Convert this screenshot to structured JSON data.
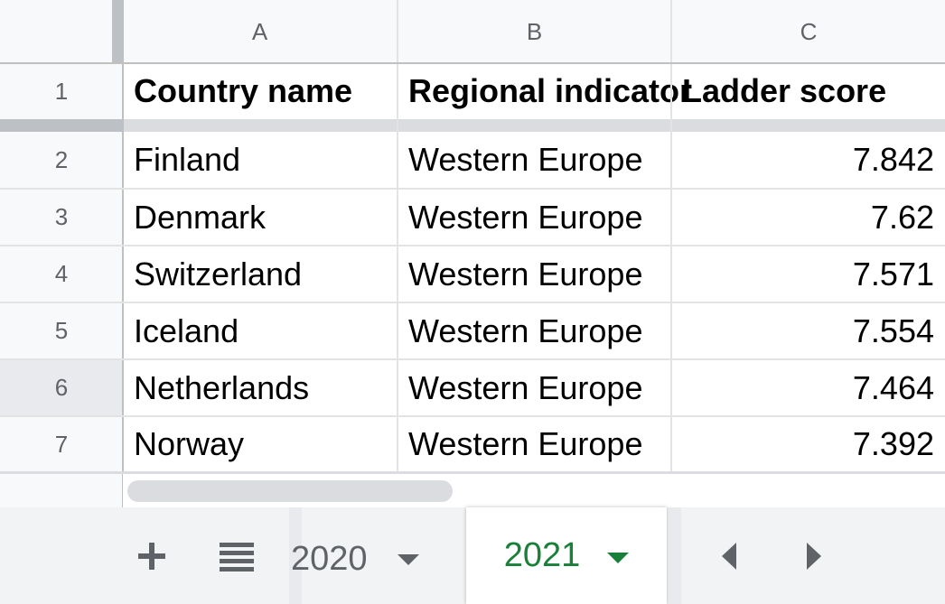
{
  "columns": [
    "A",
    "B",
    "C"
  ],
  "rows": [
    {
      "num": "1",
      "cells": [
        "Country name",
        "Regional indicator",
        "Ladder score"
      ]
    },
    {
      "num": "2",
      "cells": [
        "Finland",
        "Western Europe",
        "7.842"
      ]
    },
    {
      "num": "3",
      "cells": [
        "Denmark",
        "Western Europe",
        "7.62"
      ]
    },
    {
      "num": "4",
      "cells": [
        "Switzerland",
        "Western Europe",
        "7.571"
      ]
    },
    {
      "num": "5",
      "cells": [
        "Iceland",
        "Western Europe",
        "7.554"
      ]
    },
    {
      "num": "6",
      "cells": [
        "Netherlands",
        "Western Europe",
        "7.464"
      ]
    },
    {
      "num": "7",
      "cells": [
        "Norway",
        "Western Europe",
        "7.392"
      ]
    }
  ],
  "sheet_tabs": [
    {
      "label": "2020",
      "active": false
    },
    {
      "label": "2021",
      "active": true
    }
  ],
  "icons": {
    "add_sheet": "plus-icon",
    "all_sheets": "list-icon",
    "scroll_left": "triangle-left-icon",
    "scroll_right": "triangle-right-icon"
  },
  "colors": {
    "active_tab_text": "#188038",
    "inactive_tab_text": "#5f6368",
    "header_bg": "#f8f9fa",
    "freeze_bar": "#dadce0"
  }
}
